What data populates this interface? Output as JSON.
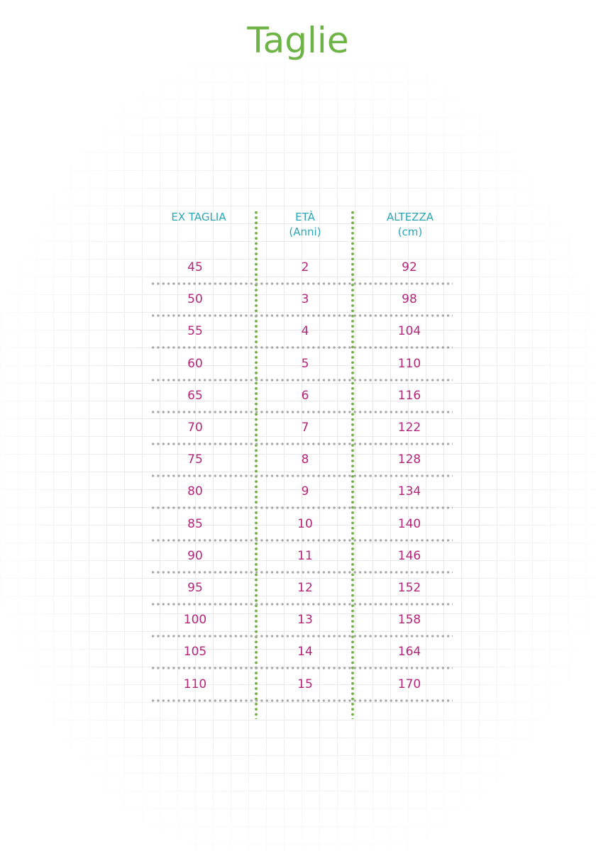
{
  "title": "Taglie",
  "colors": {
    "title": "#6db346",
    "header": "#2aa5b8",
    "values": "#b3267a",
    "vertical_dividers": "#72b043",
    "row_dividers": "#a9a9a9"
  },
  "headers": [
    {
      "line1": "EX TAGLIA",
      "line2": ""
    },
    {
      "line1": "ETÀ",
      "line2": "(Anni)"
    },
    {
      "line1": "ALTEZZA",
      "line2": "(cm)"
    }
  ],
  "rows": [
    [
      "45",
      "2",
      "92"
    ],
    [
      "50",
      "3",
      "98"
    ],
    [
      "55",
      "4",
      "104"
    ],
    [
      "60",
      "5",
      "110"
    ],
    [
      "65",
      "6",
      "116"
    ],
    [
      "70",
      "7",
      "122"
    ],
    [
      "75",
      "8",
      "128"
    ],
    [
      "80",
      "9",
      "134"
    ],
    [
      "85",
      "10",
      "140"
    ],
    [
      "90",
      "11",
      "146"
    ],
    [
      "95",
      "12",
      "152"
    ],
    [
      "100",
      "13",
      "158"
    ],
    [
      "105",
      "14",
      "164"
    ],
    [
      "110",
      "15",
      "170"
    ]
  ]
}
